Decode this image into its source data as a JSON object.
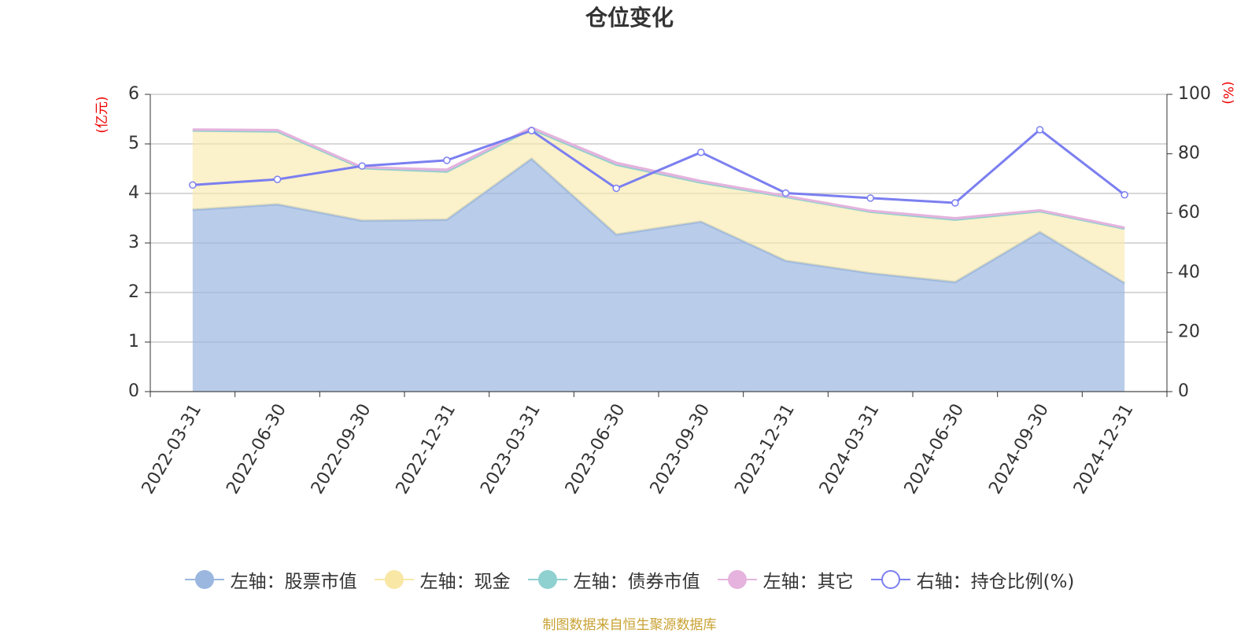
{
  "chart_data": {
    "type": "area",
    "title": "仓位变化",
    "y_label": "(亿元)",
    "y2_label": "(%)",
    "categories": [
      "2022-03-31",
      "2022-06-30",
      "2022-09-30",
      "2022-12-31",
      "2023-03-31",
      "2023-06-30",
      "2023-09-30",
      "2023-12-31",
      "2024-03-31",
      "2024-06-30",
      "2024-09-30",
      "2024-12-31"
    ],
    "series": [
      {
        "name": "左轴：股票市值",
        "color": "#9bb7e0",
        "values": [
          3.67,
          3.78,
          3.45,
          3.47,
          4.7,
          3.17,
          3.43,
          2.64,
          2.39,
          2.21,
          3.22,
          2.19
        ]
      },
      {
        "name": "左轴：现金",
        "color": "#f9e7a6",
        "values": [
          1.6,
          1.47,
          1.06,
          0.97,
          0.6,
          1.41,
          0.79,
          1.29,
          1.24,
          1.26,
          0.42,
          1.1
        ]
      },
      {
        "name": "左轴：债券市值",
        "color": "#8fd0d0",
        "values": [
          0,
          0,
          0,
          0,
          0,
          0,
          0,
          0,
          0,
          0,
          0,
          0
        ]
      },
      {
        "name": "左轴：其它",
        "color": "#e5b3dd",
        "values": [
          0.02,
          0.03,
          0.02,
          0.04,
          0.03,
          0.04,
          0.03,
          0.02,
          0.02,
          0.03,
          0.02,
          0.02
        ]
      },
      {
        "name": "右轴：持仓比例(%)",
        "color": "#7b7ff0",
        "axis": "y2",
        "type": "line",
        "values": [
          69.5,
          71.4,
          75.9,
          77.8,
          87.8,
          68.4,
          80.5,
          66.8,
          65.1,
          63.5,
          88.1,
          66.2
        ]
      }
    ],
    "stacked": true,
    "ylim": [
      0,
      6
    ],
    "yticks": [
      0,
      1,
      2,
      3,
      4,
      5,
      6
    ],
    "y2lim": [
      0,
      100
    ],
    "y2ticks": [
      0,
      20,
      40,
      60,
      80,
      100
    ],
    "grid": true,
    "source": "制图数据来自恒生聚源数据库"
  }
}
